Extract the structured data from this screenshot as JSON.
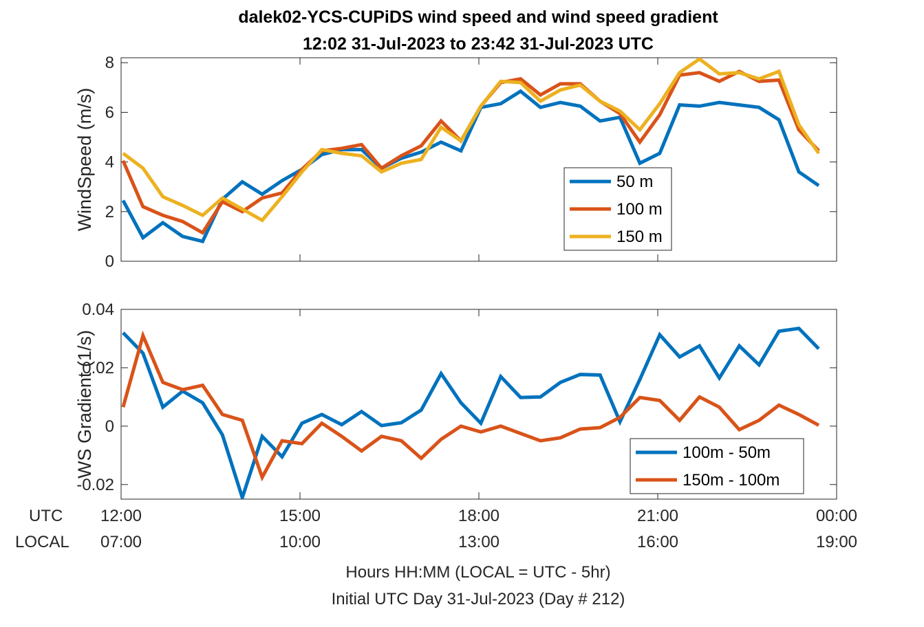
{
  "title_line1": "dalek02-YCS-CUPiDS  wind speed and wind speed gradient",
  "title_line2": "12:02 31-Jul-2023 to 23:42 31-Jul-2023  UTC",
  "xaxis": {
    "utc_label": "UTC",
    "local_label": "LOCAL",
    "utc_ticks": [
      "12:00",
      "15:00",
      "18:00",
      "21:00",
      "00:00"
    ],
    "local_ticks": [
      "07:00",
      "10:00",
      "13:00",
      "16:00",
      "19:00"
    ],
    "xlabel_line1": "Hours HH:MM  (LOCAL = UTC - 5hr)",
    "xlabel_line2": "Initial UTC Day 31-Jul-2023 (Day # 212)"
  },
  "colors": {
    "blue": "#0072BD",
    "orange": "#D95319",
    "yellow": "#EDB120"
  },
  "chart_data": [
    {
      "type": "line",
      "ylabel": "WindSpeed (m/s)",
      "xlim": [
        12.0,
        24.0
      ],
      "ylim": [
        0,
        8.2
      ],
      "yticks": [
        0,
        2,
        4,
        6,
        8
      ],
      "legend_position": "right-middle",
      "x": [
        12.033,
        12.367,
        12.7,
        13.033,
        13.367,
        13.7,
        14.033,
        14.367,
        14.7,
        15.033,
        15.367,
        15.7,
        16.033,
        16.367,
        16.7,
        17.033,
        17.367,
        17.7,
        18.033,
        18.367,
        18.7,
        19.033,
        19.367,
        19.7,
        20.033,
        20.367,
        20.7,
        21.033,
        21.367,
        21.7,
        22.033,
        22.367,
        22.7,
        23.033,
        23.367,
        23.7
      ],
      "series": [
        {
          "name": "50 m",
          "color": "#0072BD",
          "values": [
            2.45,
            0.95,
            1.55,
            1.0,
            0.8,
            2.5,
            3.2,
            2.7,
            3.25,
            3.7,
            4.3,
            4.5,
            4.5,
            3.75,
            4.15,
            4.4,
            4.8,
            4.45,
            6.2,
            6.35,
            6.85,
            6.2,
            6.4,
            6.25,
            5.65,
            5.8,
            3.95,
            4.35,
            6.3,
            6.25,
            6.4,
            6.3,
            6.2,
            5.7,
            3.6,
            3.05
          ]
        },
        {
          "name": "100 m",
          "color": "#D95319",
          "values": [
            4.05,
            2.2,
            1.85,
            1.6,
            1.15,
            2.4,
            2.0,
            2.55,
            2.75,
            3.7,
            4.45,
            4.55,
            4.7,
            3.75,
            4.25,
            4.65,
            5.65,
            4.85,
            6.25,
            7.2,
            7.35,
            6.7,
            7.15,
            7.15,
            6.45,
            5.95,
            4.8,
            5.9,
            7.5,
            7.6,
            7.25,
            7.65,
            7.25,
            7.3,
            5.3,
            4.45
          ]
        },
        {
          "name": "150 m",
          "color": "#EDB120",
          "values": [
            4.35,
            3.75,
            2.6,
            2.25,
            1.85,
            2.55,
            2.1,
            1.65,
            2.6,
            3.6,
            4.5,
            4.35,
            4.25,
            3.6,
            3.95,
            4.1,
            5.4,
            4.85,
            6.25,
            7.25,
            7.2,
            6.45,
            6.9,
            7.1,
            6.45,
            6.05,
            5.3,
            6.35,
            7.6,
            8.15,
            7.55,
            7.6,
            7.35,
            7.65,
            5.5,
            4.35
          ]
        }
      ]
    },
    {
      "type": "line",
      "ylabel": "WS Gradient (1/s)",
      "xlim": [
        12.0,
        24.0
      ],
      "ylim": [
        -0.025,
        0.04
      ],
      "yticks": [
        -0.02,
        0,
        0.02,
        0.04
      ],
      "ytick_labels": [
        "-0.02",
        "0",
        "0.02",
        "0.04"
      ],
      "legend_position": "bottom-right",
      "x": [
        12.033,
        12.367,
        12.7,
        13.033,
        13.367,
        13.7,
        14.033,
        14.367,
        14.7,
        15.033,
        15.367,
        15.7,
        16.033,
        16.367,
        16.7,
        17.033,
        17.367,
        17.7,
        18.033,
        18.367,
        18.7,
        19.033,
        19.367,
        19.7,
        20.033,
        20.367,
        20.7,
        21.033,
        21.367,
        21.7,
        22.033,
        22.367,
        22.7,
        23.033,
        23.367,
        23.7
      ],
      "series": [
        {
          "name": "100m - 50m",
          "color": "#0072BD",
          "values": [
            0.032,
            0.025,
            0.0065,
            0.012,
            0.008,
            -0.003,
            -0.0245,
            -0.0035,
            -0.0105,
            0.001,
            0.004,
            0.0005,
            0.005,
            0.0002,
            0.0012,
            0.0055,
            0.018,
            0.008,
            0.001,
            0.017,
            0.0098,
            0.01,
            0.015,
            0.0177,
            0.0175,
            0.0015,
            0.016,
            0.0313,
            0.0237,
            0.0275,
            0.0165,
            0.0275,
            0.021,
            0.0325,
            0.0335,
            0.0265
          ]
        },
        {
          "name": "150m - 100m",
          "color": "#D95319",
          "values": [
            0.0065,
            0.031,
            0.015,
            0.0125,
            0.014,
            0.004,
            0.002,
            -0.0175,
            -0.005,
            -0.006,
            0.001,
            -0.0035,
            -0.0085,
            -0.0035,
            -0.005,
            -0.011,
            -0.0045,
            0.0,
            -0.002,
            0.0,
            -0.0025,
            -0.005,
            -0.004,
            -0.001,
            -0.0005,
            0.003,
            0.0098,
            0.0088,
            0.002,
            0.01,
            0.0065,
            -0.0012,
            0.002,
            0.0072,
            0.004,
            0.0003
          ]
        }
      ]
    }
  ]
}
